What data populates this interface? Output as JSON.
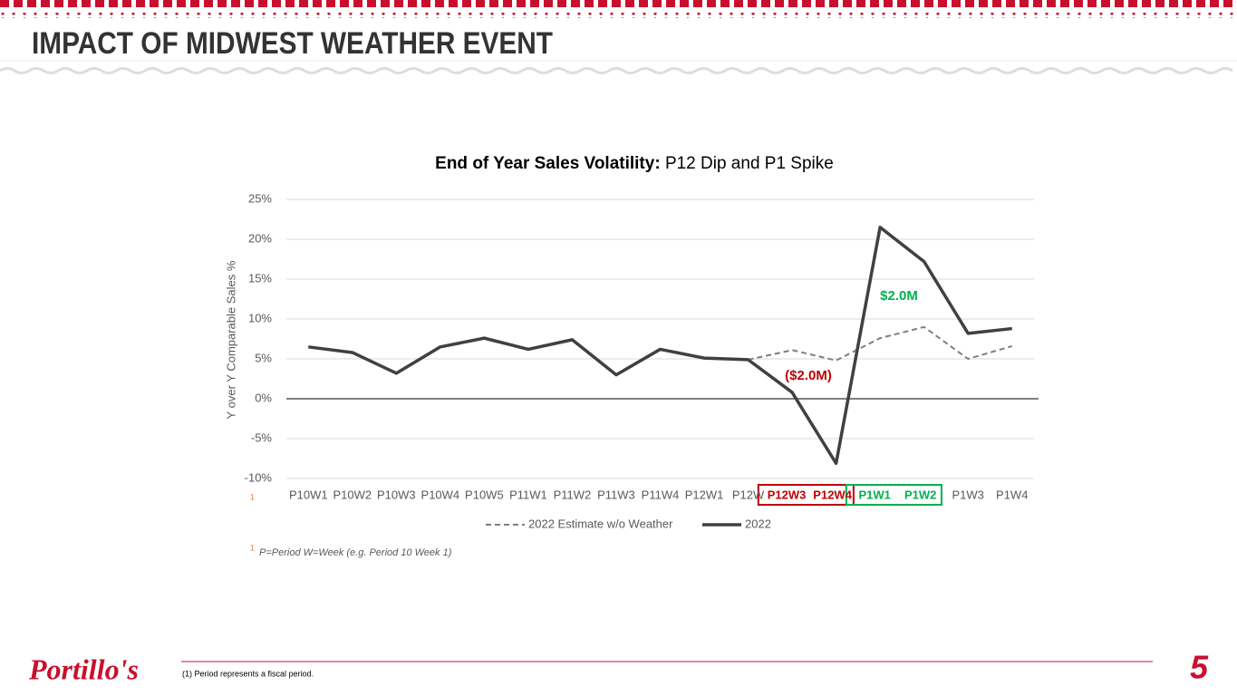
{
  "header": {
    "title": "IMPACT OF MIDWEST WEATHER EVENT"
  },
  "chart_data": {
    "type": "line",
    "title": "End of Year Sales Volatility:",
    "subtitle": "P12 Dip and P1 Spike",
    "y_label": "Y over Y Comparable Sales %",
    "categories": [
      "P10W1",
      "P10W2",
      "P10W3",
      "P10W4",
      "P10W5",
      "P11W1",
      "P11W2",
      "P11W3",
      "P11W4",
      "P12W1",
      "P12W",
      "P12W3",
      "P12W4",
      "P1W1",
      "P1W2",
      "P1W3",
      "P1W4"
    ],
    "series": [
      {
        "name": "2022 Estimate w/o Weather",
        "color": "#7f7f7f",
        "dashed": true,
        "values": [
          null,
          null,
          null,
          null,
          null,
          null,
          null,
          null,
          null,
          null,
          4.9,
          6.1,
          4.8,
          7.6,
          9.0,
          5.0,
          6.6
        ]
      },
      {
        "name": "2022",
        "color": "#404040",
        "dashed": false,
        "values": [
          6.5,
          5.8,
          3.2,
          6.5,
          7.6,
          6.2,
          7.4,
          3.0,
          6.2,
          5.1,
          4.9,
          0.8,
          -8.1,
          21.5,
          17.2,
          8.2,
          8.8
        ]
      }
    ],
    "ylim": [
      -10,
      25
    ],
    "yticks": [
      {
        "value": -10,
        "label": "-10%"
      },
      {
        "value": -5,
        "label": "-5%"
      },
      {
        "value": 0,
        "label": "0%"
      },
      {
        "value": 5,
        "label": "5%"
      },
      {
        "value": 10,
        "label": "10%"
      },
      {
        "value": 15,
        "label": "15%"
      },
      {
        "value": 20,
        "label": "20%"
      },
      {
        "value": 25,
        "label": "25%"
      }
    ],
    "grid": true,
    "annotations": [
      {
        "text": "($2.0M)",
        "color": "#c00000"
      },
      {
        "text": "$2.0M",
        "color": "#00b050"
      }
    ],
    "footnote": {
      "marker": "1",
      "text": "P=Period  W=Week (e.g. Period 10 Week 1)"
    }
  },
  "footer": {
    "logo": "Portillo's",
    "note": "(1) Period represents a fiscal period.",
    "page": "5"
  }
}
